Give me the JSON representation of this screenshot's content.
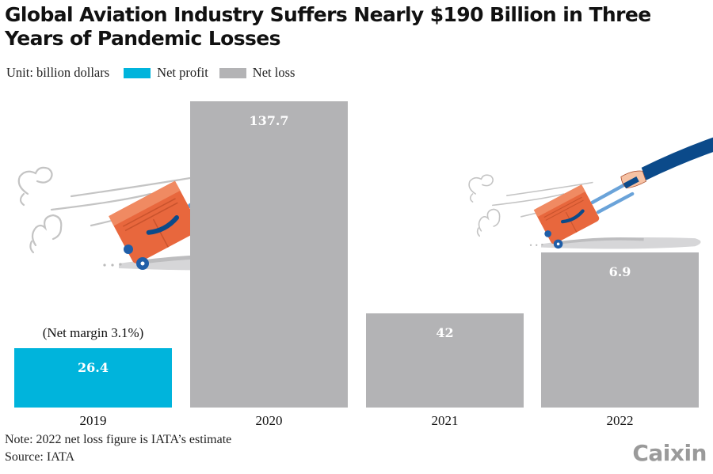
{
  "chart_data": {
    "type": "bar",
    "title": "Global Aviation Industry Suffers Nearly $190 Billion in Three Years of Pandemic Losses",
    "unit_label": "Unit: billion dollars",
    "xlabel": "",
    "ylabel": "",
    "categories": [
      "2019",
      "2020",
      "2021",
      "2022"
    ],
    "values": [
      26.4,
      137.7,
      42,
      6.9
    ],
    "value_labels": [
      "26.4",
      "137.7",
      "42",
      "6.9"
    ],
    "types": [
      "profit",
      "loss",
      "loss",
      "loss"
    ],
    "legend": [
      {
        "name": "Net profit",
        "key": "profit",
        "color": "#00b4dc"
      },
      {
        "name": "Net loss",
        "key": "loss",
        "color": "#b3b3b5"
      }
    ],
    "legend_position": "top-left",
    "grid": false,
    "annotations": [
      {
        "category": "2019",
        "text": "(Net margin 3.1%)"
      }
    ]
  },
  "footer": {
    "note": "Note: 2022 net loss figure is IATA’s estimate",
    "source": "Source: IATA"
  },
  "branding": {
    "logo": "Caixin"
  },
  "colors": {
    "profit": "#00b4dc",
    "loss": "#b3b3b5",
    "suitcase": "#e8673d",
    "sleeve": "#0b4a8a",
    "handle": "#6aa3d9",
    "skin": "#f6c2a4"
  }
}
